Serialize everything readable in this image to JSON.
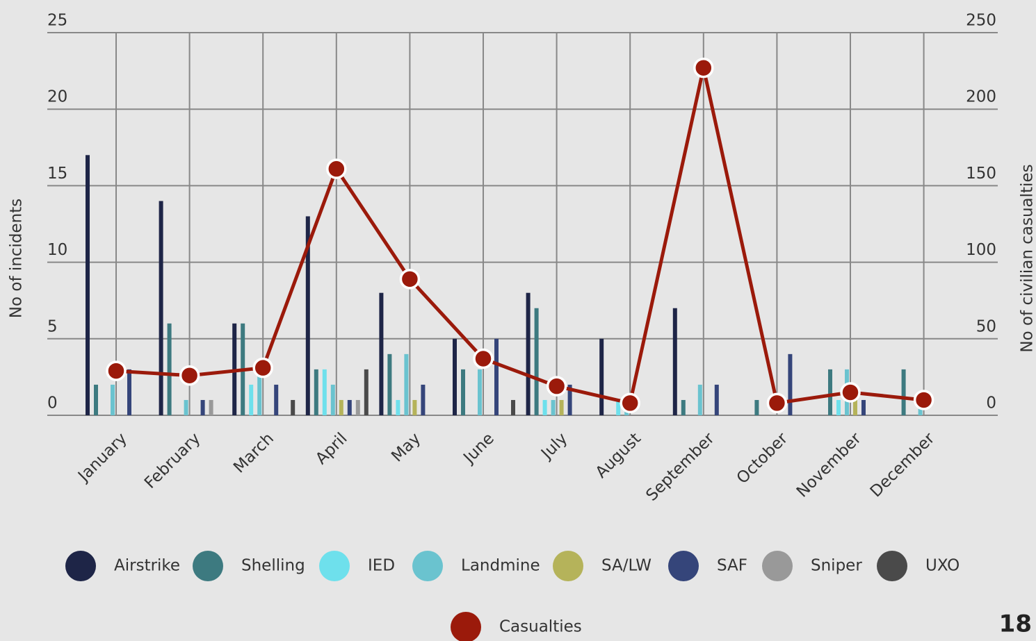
{
  "chart_data": {
    "type": "bar",
    "categories": [
      "January",
      "February",
      "March",
      "April",
      "May",
      "June",
      "July",
      "August",
      "September",
      "October",
      "November",
      "December"
    ],
    "ylabel": "No of incidents",
    "y2label": "No of civilian casualties",
    "ylim": [
      0,
      25
    ],
    "yticks": [
      0,
      5,
      10,
      15,
      20,
      25
    ],
    "y2lim": [
      0,
      250
    ],
    "y2ticks": [
      0,
      50,
      100,
      150,
      200,
      250
    ],
    "grid": true,
    "series": [
      {
        "name": "Airstrike",
        "color": "#1e2547",
        "values": [
          17,
          14,
          6,
          13,
          8,
          5,
          8,
          5,
          7,
          0,
          0,
          0
        ]
      },
      {
        "name": "Shelling",
        "color": "#3d7a80",
        "values": [
          2,
          6,
          6,
          3,
          4,
          3,
          7,
          0,
          1,
          1,
          3,
          3
        ]
      },
      {
        "name": "IED",
        "color": "#6ee0ec",
        "values": [
          0,
          0,
          2,
          3,
          1,
          0,
          1,
          1,
          0,
          0,
          1,
          0
        ]
      },
      {
        "name": "Landmine",
        "color": "#6ac3cf",
        "values": [
          2,
          1,
          3,
          2,
          4,
          3,
          1,
          1,
          2,
          0,
          3,
          1
        ]
      },
      {
        "name": "SA/LW",
        "color": "#b5b35a",
        "values": [
          0,
          0,
          0,
          1,
          1,
          0,
          1,
          0,
          0,
          0,
          1,
          0
        ]
      },
      {
        "name": "SAF",
        "color": "#35457a",
        "values": [
          3,
          1,
          2,
          1,
          2,
          5,
          2,
          0,
          2,
          4,
          1,
          0
        ]
      },
      {
        "name": "Sniper",
        "color": "#999999",
        "values": [
          0,
          1,
          0,
          1,
          0,
          0,
          0,
          0,
          0,
          0,
          0,
          0
        ]
      },
      {
        "name": "UXO",
        "color": "#4a4a4a",
        "values": [
          0,
          0,
          1,
          3,
          0,
          1,
          0,
          0,
          0,
          0,
          0,
          0
        ]
      },
      {
        "name": "Casualties",
        "color": "#9b1a0b",
        "type": "line",
        "axis": "y2",
        "values": [
          29,
          26,
          31,
          161,
          89,
          37,
          19,
          8,
          227,
          8,
          15,
          10
        ]
      }
    ]
  },
  "page_number": "18"
}
